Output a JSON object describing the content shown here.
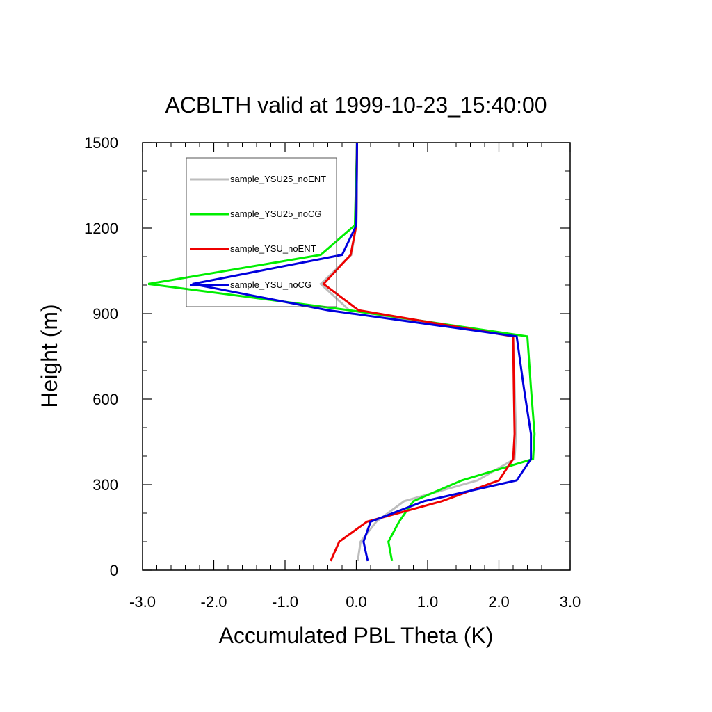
{
  "chart_data": {
    "type": "line",
    "title": "ACBLTH valid at 1999-10-23_15:40:00",
    "xlabel": "Accumulated PBL Theta (K)",
    "ylabel": "Height (m)",
    "xlim": [
      -3.0,
      3.0
    ],
    "ylim": [
      0,
      1500
    ],
    "xticks": [
      "-3.0",
      "-2.0",
      "-1.0",
      "0.0",
      "1.0",
      "2.0",
      "3.0"
    ],
    "yticks": [
      "0",
      "300",
      "600",
      "900",
      "1200",
      "1500"
    ],
    "grid": false,
    "legend_position": "top-left",
    "series": [
      {
        "name": "sample_YSU25_noENT",
        "color": "#bdbdbd",
        "points": [
          [
            0.02,
            32
          ],
          [
            0.06,
            100
          ],
          [
            0.28,
            170
          ],
          [
            0.67,
            242
          ],
          [
            1.7,
            315
          ],
          [
            2.22,
            390
          ],
          [
            2.24,
            478
          ],
          [
            2.22,
            640
          ],
          [
            2.2,
            820
          ],
          [
            -0.1,
            912
          ],
          [
            -0.5,
            1004
          ],
          [
            -0.07,
            1106
          ],
          [
            0.0,
            1210
          ],
          [
            0.01,
            1500
          ]
        ]
      },
      {
        "name": "sample_YSU25_noCG",
        "color": "#00ee00",
        "points": [
          [
            0.5,
            32
          ],
          [
            0.45,
            100
          ],
          [
            0.6,
            170
          ],
          [
            0.8,
            242
          ],
          [
            1.48,
            315
          ],
          [
            2.48,
            390
          ],
          [
            2.5,
            478
          ],
          [
            2.45,
            640
          ],
          [
            2.4,
            820
          ],
          [
            -0.1,
            912
          ],
          [
            -2.92,
            1004
          ],
          [
            -0.5,
            1106
          ],
          [
            -0.02,
            1210
          ],
          [
            0.01,
            1500
          ]
        ]
      },
      {
        "name": "sample_YSU_noENT",
        "color": "#ee0000",
        "points": [
          [
            -0.36,
            32
          ],
          [
            -0.24,
            100
          ],
          [
            0.15,
            170
          ],
          [
            1.2,
            242
          ],
          [
            2.0,
            315
          ],
          [
            2.2,
            390
          ],
          [
            2.22,
            478
          ],
          [
            2.21,
            640
          ],
          [
            2.2,
            820
          ],
          [
            0.03,
            912
          ],
          [
            -0.46,
            1004
          ],
          [
            -0.08,
            1106
          ],
          [
            0.0,
            1210
          ],
          [
            0.01,
            1500
          ]
        ]
      },
      {
        "name": "sample_YSU_noCG",
        "color": "#0000dd",
        "points": [
          [
            0.16,
            32
          ],
          [
            0.1,
            100
          ],
          [
            0.2,
            170
          ],
          [
            0.95,
            242
          ],
          [
            2.25,
            315
          ],
          [
            2.45,
            390
          ],
          [
            2.45,
            478
          ],
          [
            2.35,
            640
          ],
          [
            2.25,
            820
          ],
          [
            -0.4,
            912
          ],
          [
            -2.3,
            1004
          ],
          [
            -0.2,
            1106
          ],
          [
            0.0,
            1210
          ],
          [
            0.01,
            1500
          ]
        ]
      }
    ]
  }
}
